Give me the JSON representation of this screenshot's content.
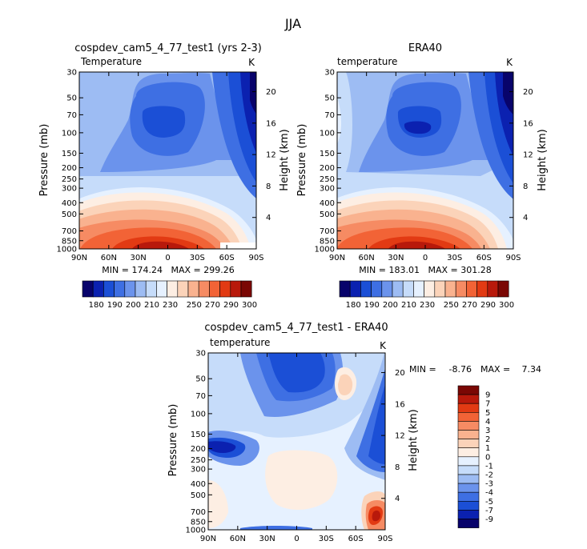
{
  "page": {
    "title": "JJA"
  },
  "palettes": {
    "abs": [
      "#08036b",
      "#0b21b0",
      "#1b4fd6",
      "#3e6fe3",
      "#6b93ec",
      "#9dbcf3",
      "#c6dcfa",
      "#e6f1ff",
      "#fdeee3",
      "#fbd3b9",
      "#f9b28f",
      "#f68b63",
      "#f26336",
      "#e23a13",
      "#b8190b",
      "#7a0704"
    ],
    "diff": [
      "#08036b",
      "#0b21b0",
      "#1b4fd6",
      "#3e6fe3",
      "#6b93ec",
      "#9dbcf3",
      "#c6dcfa",
      "#e6f1ff",
      "#fdeee3",
      "#fbd3b9",
      "#f9b28f",
      "#f68b63",
      "#f26336",
      "#e23a13",
      "#b8190b",
      "#7a0704"
    ]
  },
  "chart_data": [
    {
      "type": "contour",
      "title": "cospdev_cam5_4_77_test1 (yrs 2-3)",
      "subtitle": "Temperature",
      "units": "K",
      "xlabel": "",
      "ylabel": "Pressure (mb)",
      "y2label": "Height (km)",
      "x_ticks": [
        "90N",
        "60N",
        "30N",
        "0",
        "30S",
        "60S",
        "90S"
      ],
      "y_ticks": [
        30,
        50,
        70,
        100,
        150,
        200,
        250,
        300,
        400,
        500,
        700,
        850,
        1000
      ],
      "y2_ticks": [
        20,
        16,
        12,
        8,
        4
      ],
      "min_max": "MIN = 174.24   MAX = 299.26",
      "colorbar_labels": [
        "180",
        "190",
        "200",
        "210",
        "230",
        "250",
        "270",
        "290",
        "300"
      ],
      "levels": [
        15,
        14,
        13,
        12,
        11,
        10,
        9,
        8,
        7
      ],
      "pressure_levels": [
        1000,
        850,
        700,
        500,
        400,
        300,
        250,
        200,
        150,
        100,
        70,
        50,
        30
      ]
    },
    {
      "type": "contour",
      "title": "ERA40",
      "subtitle": "temperature",
      "units": "K",
      "ylabel": "Pressure (mb)",
      "y2label": "Height (km)",
      "x_ticks": [
        "90N",
        "60N",
        "30N",
        "0",
        "30S",
        "60S",
        "90S"
      ],
      "y_ticks": [
        30,
        50,
        70,
        100,
        150,
        200,
        250,
        300,
        400,
        500,
        700,
        850,
        1000
      ],
      "y2_ticks": [
        20,
        16,
        12,
        8,
        4
      ],
      "min_max": "MIN = 183.01   MAX = 301.28",
      "colorbar_labels": [
        "180",
        "190",
        "200",
        "210",
        "230",
        "250",
        "270",
        "290",
        "300"
      ],
      "levels": [
        15,
        14,
        13,
        12,
        11,
        10,
        9,
        8,
        7
      ],
      "pressure_levels": [
        1000,
        850,
        700,
        500,
        400,
        300,
        250,
        200,
        150,
        100,
        70,
        50,
        30
      ]
    },
    {
      "type": "contour",
      "title": "cospdev_cam5_4_77_test1 - ERA40",
      "subtitle": "temperature",
      "units": "K",
      "ylabel": "Pressure (mb)",
      "y2label": "Height (km)",
      "x_ticks": [
        "90N",
        "60N",
        "30N",
        "0",
        "30S",
        "60S",
        "90S"
      ],
      "y_ticks": [
        30,
        50,
        70,
        100,
        150,
        200,
        250,
        300,
        400,
        500,
        700,
        850,
        1000
      ],
      "y2_ticks": [
        20,
        16,
        12,
        8,
        4
      ],
      "min_label": "MIN =",
      "min_value": "-8.76",
      "max_label": "MAX =",
      "max_value": "7.34",
      "colorbar_labels": [
        "9",
        "7",
        "5",
        "4",
        "3",
        "2",
        "1",
        "0",
        "-1",
        "-2",
        "-3",
        "-4",
        "-5",
        "-7",
        "-9"
      ]
    }
  ]
}
